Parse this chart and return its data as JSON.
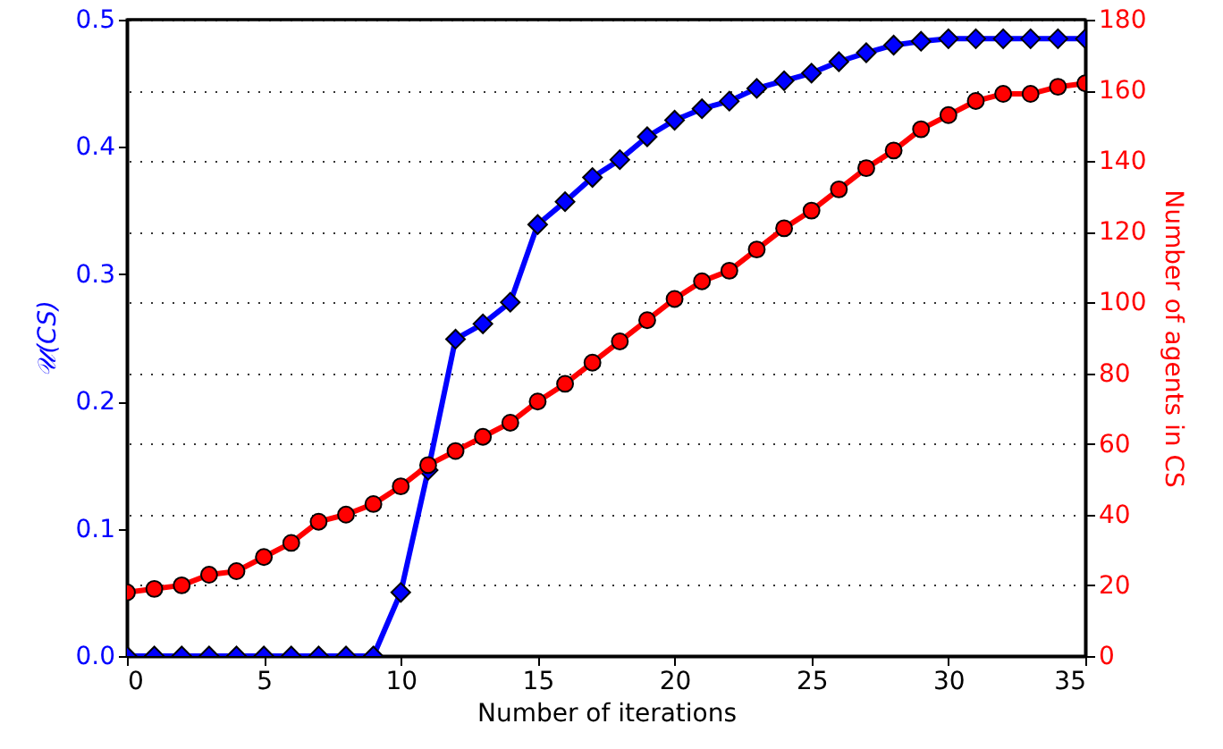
{
  "chart_data": {
    "type": "line",
    "xlabel": "Number of iterations",
    "ylabel": "𝒰(CS)",
    "y2label": "Number of agents in CS",
    "x": [
      0,
      1,
      2,
      3,
      4,
      5,
      6,
      7,
      8,
      9,
      10,
      11,
      12,
      13,
      14,
      15,
      16,
      17,
      18,
      19,
      20,
      21,
      22,
      23,
      24,
      25,
      26,
      27,
      28,
      29,
      30,
      31,
      32,
      33,
      34,
      35
    ],
    "series": [
      {
        "color": "#0000ff",
        "marker": "diamond",
        "values": [
          0,
          0,
          0,
          0,
          0,
          0,
          0,
          0,
          0,
          0,
          0.05,
          0.146,
          0.249,
          0.261,
          0.278,
          0.339,
          0.357,
          0.376,
          0.39,
          0.408,
          0.421,
          0.43,
          0.436,
          0.446,
          0.452,
          0.458,
          0.467,
          0.474,
          0.48,
          0.483,
          0.485,
          0.485,
          0.485,
          0.485,
          0.485,
          0.485
        ]
      },
      {
        "color": "#ff0000",
        "marker": "circle",
        "axis": "y2",
        "values": [
          18,
          19,
          20,
          23,
          24,
          28,
          32,
          38,
          40,
          43,
          48,
          54,
          58,
          62,
          66,
          72,
          77,
          83,
          89,
          95,
          101,
          106,
          109,
          115,
          121,
          126,
          132,
          138,
          143,
          149,
          153,
          157,
          159,
          159,
          161,
          162
        ]
      }
    ],
    "xlim": [
      0,
      35
    ],
    "xticks": [
      0,
      5,
      10,
      15,
      20,
      25,
      30,
      35
    ],
    "ylim": [
      0,
      0.5
    ],
    "yticks": [
      {
        "value": 0,
        "label": "0.0"
      },
      0.1,
      0.2,
      0.3,
      0.4,
      0.5
    ],
    "y2lim": [
      0,
      180
    ],
    "y2ticks": [
      0,
      20,
      40,
      60,
      80,
      100,
      120,
      140,
      160,
      180
    ],
    "grid": "y2",
    "line_style": "solid"
  }
}
